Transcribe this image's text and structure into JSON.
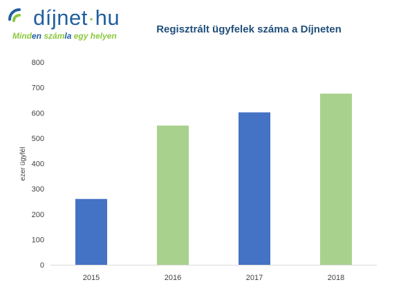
{
  "logo": {
    "word_part1": "díjnet",
    "word_dot": "·",
    "word_part2": "hu",
    "tagline_part1": "Mind",
    "tagline_highlight": "en",
    "tagline_part2": " szám",
    "tagline_highlight2": "la",
    "tagline_part3": " egy helyen",
    "colors": {
      "blue": "#1f5fa0",
      "green": "#8cc83f"
    }
  },
  "chart_data": {
    "type": "bar",
    "title": "Regisztrált ügyfelek száma a Díjneten",
    "ylabel": "ezer ügyfél",
    "xlabel": "",
    "categories": [
      "2015",
      "2016",
      "2017",
      "2018"
    ],
    "values": [
      260,
      550,
      602,
      676
    ],
    "bar_colors": [
      "#4472c4",
      "#a9d18e",
      "#4472c4",
      "#a9d18e"
    ],
    "ylim": [
      0,
      800
    ],
    "yticks": [
      0,
      100,
      200,
      300,
      400,
      500,
      600,
      700,
      800
    ],
    "grid": false,
    "legend": "none"
  }
}
